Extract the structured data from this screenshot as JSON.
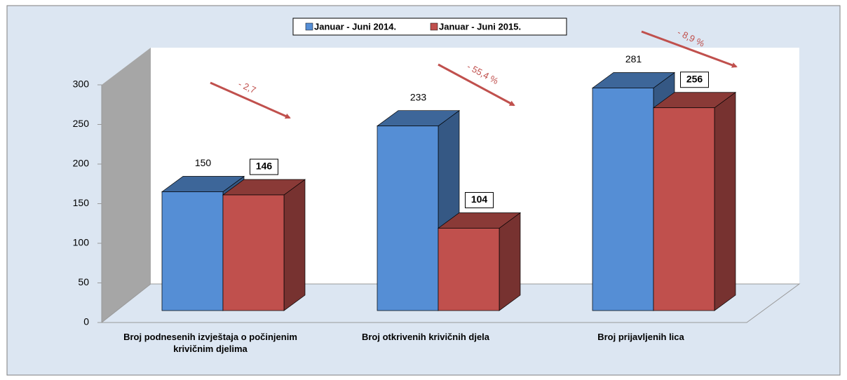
{
  "chart_data": {
    "type": "bar3d",
    "categories": [
      "Broj podnesenih izvještaja o počinjenim krivičnim djelima",
      "Broj otkrivenih krivičnih djela",
      "Broj prijavljenih lica"
    ],
    "series": [
      {
        "name": "Januar - Juni 2014.",
        "color": "#558ed5",
        "values": [
          150,
          233,
          281
        ]
      },
      {
        "name": "Januar - Juni 2015.",
        "color": "#c0504d",
        "values": [
          146,
          104,
          256
        ]
      }
    ],
    "annotations": [
      "- 2,7",
      "- 55,4 %",
      "- 8,9 %"
    ],
    "ylim": [
      0,
      300
    ],
    "yticks": [
      0,
      50,
      100,
      150,
      200,
      250,
      300
    ],
    "legend": "top",
    "grid": false
  }
}
